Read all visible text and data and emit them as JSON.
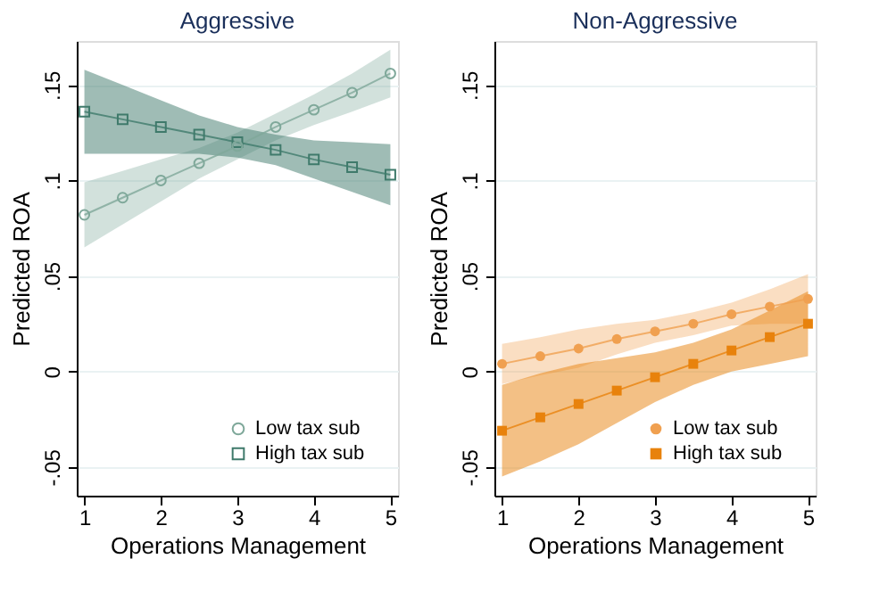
{
  "chart_data": [
    {
      "type": "line",
      "title": "Aggressive",
      "xlabel": "Operations Management",
      "ylabel": "Predicted ROA",
      "x": [
        1,
        1.5,
        2,
        2.5,
        3,
        3.5,
        4,
        4.5,
        5
      ],
      "xlim": [
        0.9,
        5.1
      ],
      "xticks": [
        1,
        2,
        3,
        4,
        5
      ],
      "ylim": [
        -0.065,
        0.173
      ],
      "yticks": [
        {
          "value": -0.05,
          "label": "-.05"
        },
        0,
        {
          "value": 0.05,
          "label": ".05"
        },
        {
          "value": 0.1,
          "label": ".1"
        },
        {
          "value": 0.15,
          "label": ".15"
        }
      ],
      "grid": "y",
      "legend": "bottom right",
      "series": [
        {
          "name": "Low tax sub",
          "color": "#7fa89a",
          "marker": "circle",
          "values": [
            0.082,
            0.091,
            0.1,
            0.109,
            0.118,
            0.128,
            0.137,
            0.146,
            0.156
          ],
          "lower": [
            0.065,
            0.077,
            0.089,
            0.101,
            0.111,
            0.121,
            0.129,
            0.136,
            0.1435
          ],
          "upper": [
            0.099,
            0.105,
            0.111,
            0.117,
            0.125,
            0.135,
            0.145,
            0.156,
            0.1685
          ]
        },
        {
          "name": "High tax sub",
          "color": "#3f7a6b",
          "marker": "square",
          "values": [
            0.136,
            0.132,
            0.128,
            0.124,
            0.12,
            0.116,
            0.111,
            0.107,
            0.103
          ],
          "lower": [
            0.114,
            0.114,
            0.114,
            0.114,
            0.112,
            0.108,
            0.101,
            0.094,
            0.087
          ],
          "upper": [
            0.158,
            0.15,
            0.142,
            0.134,
            0.128,
            0.124,
            0.121,
            0.12,
            0.119
          ]
        }
      ]
    },
    {
      "type": "line",
      "title": "Non-Aggressive",
      "xlabel": "Operations Management",
      "ylabel": "Predicted ROA",
      "x": [
        1,
        1.5,
        2,
        2.5,
        3,
        3.5,
        4,
        4.5,
        5
      ],
      "xlim": [
        0.9,
        5.1
      ],
      "xticks": [
        1,
        2,
        3,
        4,
        5
      ],
      "ylim": [
        -0.065,
        0.173
      ],
      "yticks": [
        {
          "value": -0.05,
          "label": "-.05"
        },
        0,
        {
          "value": 0.05,
          "label": ".05"
        },
        {
          "value": 0.1,
          "label": ".1"
        },
        {
          "value": 0.15,
          "label": ".15"
        }
      ],
      "grid": "y",
      "legend": "bottom right",
      "series": [
        {
          "name": "Low tax sub",
          "color": "#f0a050",
          "marker": "circle",
          "values": [
            0.004,
            0.008,
            0.012,
            0.017,
            0.021,
            0.025,
            0.03,
            0.034,
            0.038
          ],
          "lower": [
            -0.0065,
            -0.002,
            0.002,
            0.009,
            0.015,
            0.019,
            0.024,
            0.025,
            0.025
          ],
          "upper": [
            0.0145,
            0.018,
            0.022,
            0.025,
            0.027,
            0.031,
            0.036,
            0.043,
            0.051
          ]
        },
        {
          "name": "High tax sub",
          "color": "#e8820c",
          "marker": "square",
          "values": [
            -0.031,
            -0.024,
            -0.017,
            -0.01,
            -0.003,
            0.004,
            0.011,
            0.018,
            0.025
          ],
          "lower": [
            -0.055,
            -0.047,
            -0.038,
            -0.027,
            -0.016,
            -0.007,
            0.0,
            0.004,
            0.008
          ],
          "upper": [
            -0.007,
            -0.001,
            0.004,
            0.007,
            0.01,
            0.015,
            0.022,
            0.032,
            0.042
          ]
        }
      ]
    }
  ]
}
